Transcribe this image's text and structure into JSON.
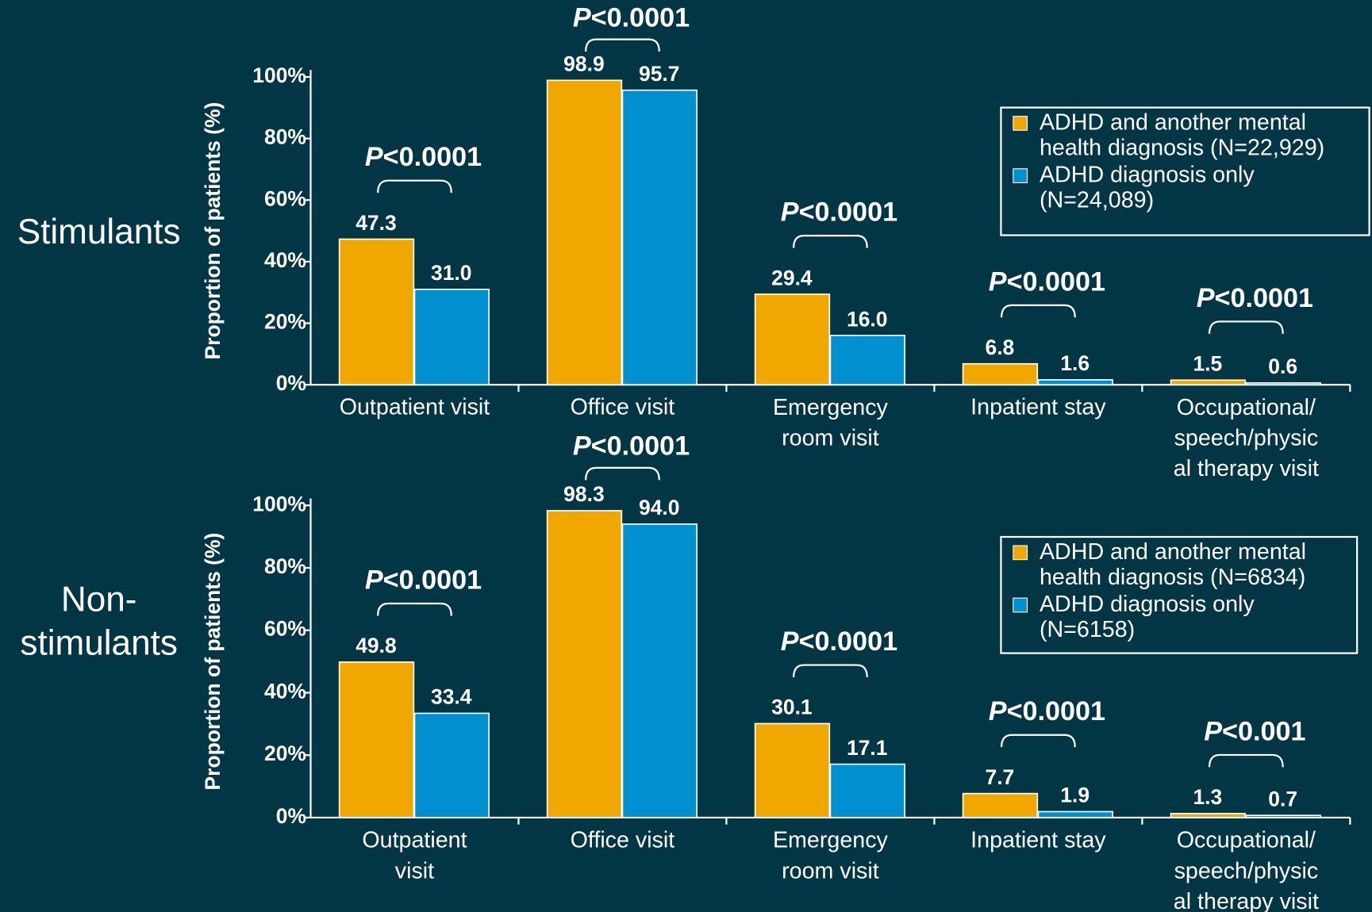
{
  "chart_data": [
    {
      "type": "bar",
      "title": "Stimulants",
      "ylabel": "Proportion of patients (%)",
      "categories": [
        "Outpatient visit",
        "Office visit",
        "Emergency\nroom visit",
        "Inpatient stay",
        "Occupational/\nspeech/physic\nal therapy visit"
      ],
      "series": [
        {
          "name": "ADHD and another mental\nhealth diagnosis (N=22,929)",
          "color": "#f0a800",
          "values": [
            47.3,
            98.9,
            29.4,
            6.8,
            1.5
          ],
          "value_labels": [
            "47.3",
            "98.9",
            "29.4",
            "6.8",
            "1.5"
          ]
        },
        {
          "name": "ADHD diagnosis only\n(N=24,089)",
          "color": "#0090d0",
          "values": [
            31.0,
            95.7,
            16.0,
            1.6,
            0.6
          ],
          "value_labels": [
            "31.0",
            "95.7",
            "16.0",
            "1.6",
            "0.6"
          ]
        }
      ],
      "annotations": [
        "P<0.0001",
        "P<0.0001",
        "P<0.0001",
        "P<0.0001",
        "P<0.0001"
      ],
      "ylim": [
        0,
        100
      ],
      "yticks": [
        {
          "value": 0,
          "label": "0%"
        },
        {
          "value": 20,
          "label": "20%"
        },
        {
          "value": 40,
          "label": "40%"
        },
        {
          "value": 60,
          "label": "60%"
        },
        {
          "value": 80,
          "label": "80%"
        },
        {
          "value": 100,
          "label": "100%"
        }
      ],
      "legend": "upper right"
    },
    {
      "type": "bar",
      "title": "Non-\nstimulants",
      "ylabel": "Proportion of patients (%)",
      "categories": [
        "Outpatient\nvisit",
        "Office visit",
        "Emergency\nroom visit",
        "Inpatient stay",
        "Occupational/\nspeech/physic\nal therapy visit"
      ],
      "series": [
        {
          "name": "ADHD and another mental\nhealth diagnosis (N=6834)",
          "color": "#f0a800",
          "values": [
            49.8,
            98.3,
            30.1,
            7.7,
            1.3
          ],
          "value_labels": [
            "49.8",
            "98.3",
            "30.1",
            "7.7",
            "1.3"
          ]
        },
        {
          "name": "ADHD diagnosis only\n(N=6158)",
          "color": "#0090d0",
          "values": [
            33.4,
            94.0,
            17.1,
            1.9,
            0.7
          ],
          "value_labels": [
            "33.4",
            "94.0",
            "17.1",
            "1.9",
            "0.7"
          ]
        }
      ],
      "annotations": [
        "P<0.0001",
        "P<0.0001",
        "P<0.0001",
        "P<0.0001",
        "P<0.001"
      ],
      "ylim": [
        0,
        100
      ],
      "yticks": [
        {
          "value": 0,
          "label": "0%"
        },
        {
          "value": 20,
          "label": "20%"
        },
        {
          "value": 40,
          "label": "40%"
        },
        {
          "value": 60,
          "label": "60%"
        },
        {
          "value": 80,
          "label": "80%"
        },
        {
          "value": 100,
          "label": "100%"
        }
      ],
      "legend": "upper right"
    }
  ]
}
